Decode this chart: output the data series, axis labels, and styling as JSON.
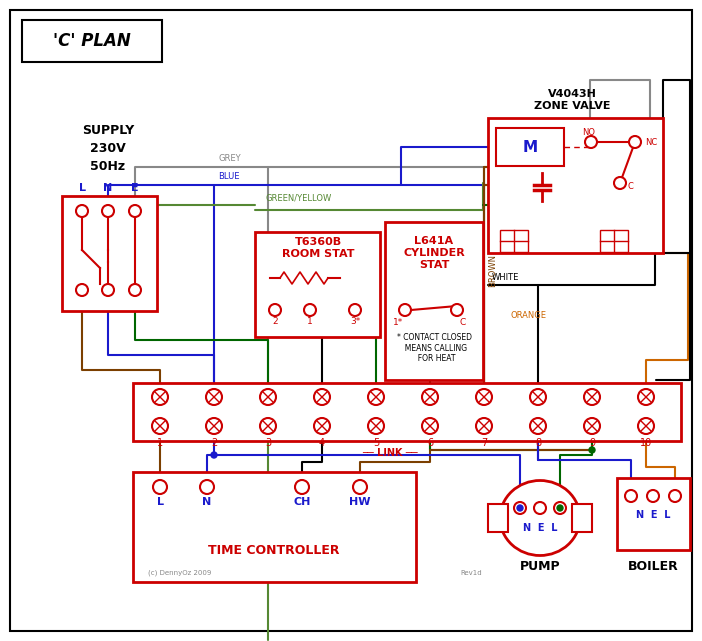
{
  "title": "'C' PLAN",
  "bg_color": "#ffffff",
  "red": "#cc0000",
  "blue": "#1a1acc",
  "green": "#006600",
  "brown": "#7B3F00",
  "grey": "#888888",
  "orange": "#cc6600",
  "black": "#000000",
  "green_yellow": "#558833",
  "zone_valve_title": "V4043H\nZONE VALVE",
  "time_controller_title": "TIME CONTROLLER",
  "pump_title": "PUMP",
  "boiler_title": "BOILER",
  "link_text": "LINK",
  "copyright": "(c) DennyOz 2009",
  "rev": "Rev1d"
}
